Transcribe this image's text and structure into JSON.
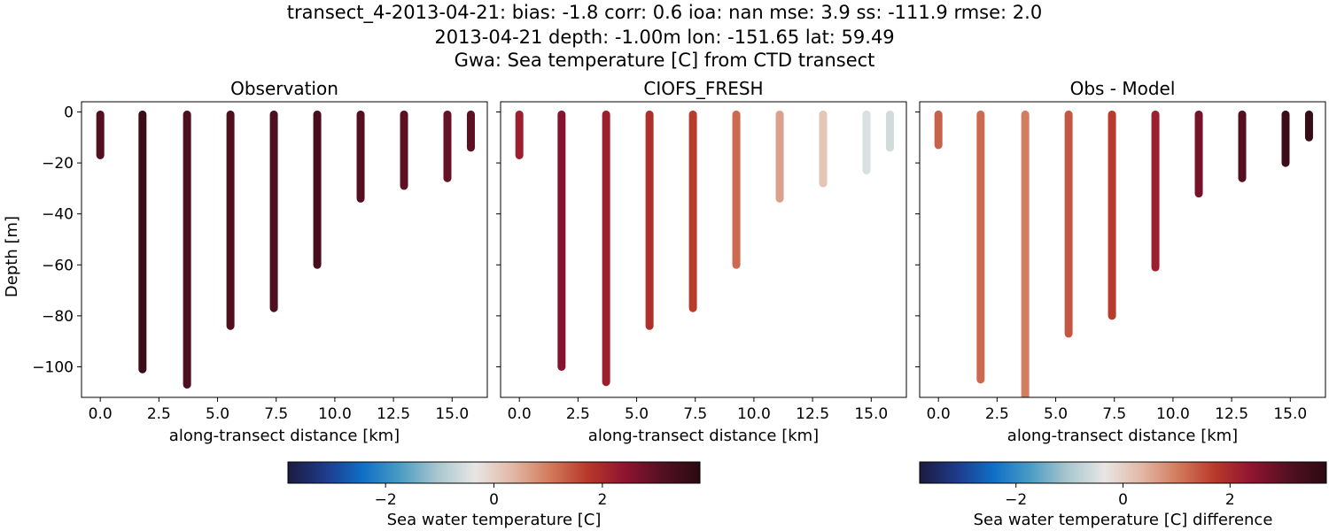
{
  "figure": {
    "title_lines": [
      "transect_4-2013-04-21: bias: -1.8  corr: 0.6  ioa: nan  mse: 3.9  ss: -111.9  rmse: 2.0",
      "2013-04-21 depth: -1.00m lon: -151.65 lat: 59.49",
      "Gwa: Sea temperature [C] from CTD transect"
    ]
  },
  "colors": {
    "colormap_stops": [
      "#1b1b3f",
      "#1f3a8a",
      "#0f6fc6",
      "#4b9cc4",
      "#a9c7cf",
      "#e8e6e4",
      "#e2b8a6",
      "#d27a5c",
      "#b8382a",
      "#8e1430",
      "#531021",
      "#2b0a12"
    ],
    "observation_fill": "#6a1020",
    "observation_deep": "#4f0f1c"
  },
  "chart_data": [
    {
      "type": "scatter",
      "title": "Observation",
      "xlabel": "along-transect distance [km]",
      "ylabel": "Depth [m]",
      "xlim": [
        -0.8,
        16.5
      ],
      "ylim": [
        -112,
        4
      ],
      "xticks": [
        "0.0",
        "2.5",
        "5.0",
        "7.5",
        "10.0",
        "12.5",
        "15.0"
      ],
      "xtick_values": [
        0,
        2.5,
        5,
        7.5,
        10,
        12.5,
        15
      ],
      "yticks": [
        "0",
        "−20",
        "−40",
        "−60",
        "−80",
        "−100"
      ],
      "ytick_values": [
        0,
        -20,
        -40,
        -60,
        -80,
        -100
      ],
      "stations": [
        {
          "x": 0.0,
          "bottom": -17,
          "value": 3.1
        },
        {
          "x": 1.8,
          "bottom": -101,
          "value": 3.5
        },
        {
          "x": 3.7,
          "bottom": -107,
          "value": 3.2
        },
        {
          "x": 5.55,
          "bottom": -84,
          "value": 3.2
        },
        {
          "x": 7.4,
          "bottom": -77,
          "value": 3.2
        },
        {
          "x": 9.25,
          "bottom": -60,
          "value": 3.3
        },
        {
          "x": 11.1,
          "bottom": -34,
          "value": 3.1
        },
        {
          "x": 12.95,
          "bottom": -29,
          "value": 3.0
        },
        {
          "x": 14.8,
          "bottom": -26,
          "value": 2.9
        },
        {
          "x": 15.8,
          "bottom": -14,
          "value": 3.0
        }
      ]
    },
    {
      "type": "scatter",
      "title": "CIOFS_FRESH",
      "xlabel": "along-transect distance [km]",
      "ylabel": "",
      "xlim": [
        -0.8,
        16.5
      ],
      "ylim": [
        -112,
        4
      ],
      "xticks": [
        "0.0",
        "2.5",
        "5.0",
        "7.5",
        "10.0",
        "12.5",
        "15.0"
      ],
      "xtick_values": [
        0,
        2.5,
        5,
        7.5,
        10,
        12.5,
        15
      ],
      "stations": [
        {
          "x": 0.0,
          "bottom": -17,
          "value": 2.2
        },
        {
          "x": 1.8,
          "bottom": -100,
          "value": 2.5
        },
        {
          "x": 3.7,
          "bottom": -106,
          "value": 2.2
        },
        {
          "x": 5.55,
          "bottom": -84,
          "value": 1.9
        },
        {
          "x": 7.4,
          "bottom": -77,
          "value": 1.7
        },
        {
          "x": 9.25,
          "bottom": -60,
          "value": 1.2
        },
        {
          "x": 11.1,
          "bottom": -34,
          "value": 0.6
        },
        {
          "x": 12.95,
          "bottom": -28,
          "value": 0.15
        },
        {
          "x": 14.8,
          "bottom": -23,
          "value": -0.5
        },
        {
          "x": 15.8,
          "bottom": -14,
          "value": -0.6
        }
      ]
    },
    {
      "type": "scatter",
      "title": "Obs - Model",
      "xlabel": "along-transect distance [km]",
      "ylabel": "",
      "xlim": [
        -0.8,
        16.5
      ],
      "ylim": [
        -112,
        4
      ],
      "xticks": [
        "0.0",
        "2.5",
        "5.0",
        "7.5",
        "10.0",
        "12.5",
        "15.0"
      ],
      "xtick_values": [
        0,
        2.5,
        5,
        7.5,
        10,
        12.5,
        15
      ],
      "stations": [
        {
          "x": 0.0,
          "bottom": -13,
          "value": 1.3
        },
        {
          "x": 1.8,
          "bottom": -105,
          "value": 1.2
        },
        {
          "x": 3.7,
          "bottom": -112,
          "value": 1.0
        },
        {
          "x": 5.55,
          "bottom": -87,
          "value": 1.4
        },
        {
          "x": 7.4,
          "bottom": -80,
          "value": 1.7
        },
        {
          "x": 9.25,
          "bottom": -61,
          "value": 2.2
        },
        {
          "x": 11.1,
          "bottom": -32,
          "value": 2.7
        },
        {
          "x": 12.95,
          "bottom": -26,
          "value": 3.1
        },
        {
          "x": 14.8,
          "bottom": -20,
          "value": 3.5
        },
        {
          "x": 15.8,
          "bottom": -10,
          "value": 3.6
        }
      ]
    }
  ],
  "colorbars": [
    {
      "label": "Sea water temperature [C]",
      "range": [
        -3.8,
        3.8
      ],
      "ticks": [
        "−2",
        "0",
        "2"
      ],
      "tick_values": [
        -2,
        0,
        2
      ]
    },
    {
      "label": "Sea water temperature [C] difference",
      "range": [
        -3.8,
        3.8
      ],
      "ticks": [
        "−2",
        "0",
        "2"
      ],
      "tick_values": [
        -2,
        0,
        2
      ]
    }
  ]
}
